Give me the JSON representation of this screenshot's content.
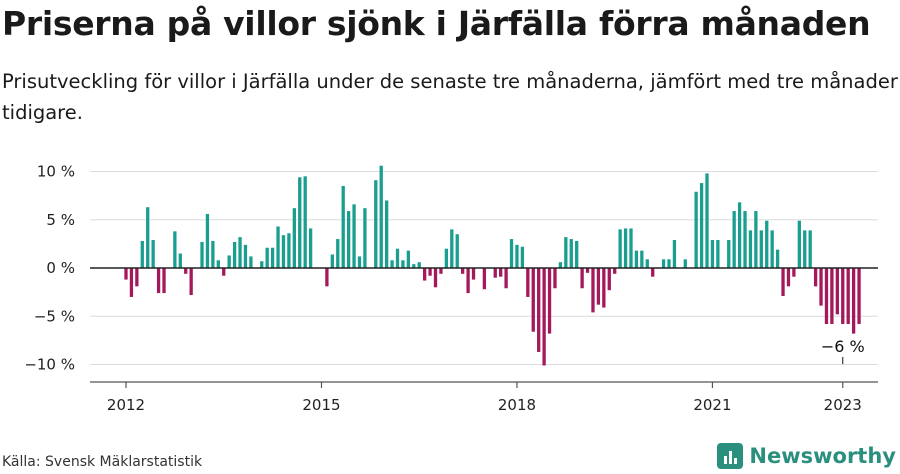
{
  "title": "Priserna på villor sjönk i Järfälla förra månaden",
  "subtitle": "Prisutveckling för villor i Järfälla under de senaste tre månaderna, jämfört med tre månader tidigare.",
  "source": "Källa: Svensk Mäklarstatistik",
  "brand": "Newsworthy",
  "colors": {
    "positive": "#1a9e8f",
    "negative": "#a3195b",
    "brand": "#2b8f7e"
  },
  "chart_data": {
    "type": "bar",
    "title": "Priserna på villor sjönk i Järfälla förra månaden",
    "x_start": "2012-01",
    "x_ticks": [
      {
        "label": "2012",
        "date": "2012-01"
      },
      {
        "label": "2015",
        "date": "2015-01"
      },
      {
        "label": "2018",
        "date": "2018-01"
      },
      {
        "label": "2021",
        "date": "2021-01"
      },
      {
        "label": "2023",
        "date": "2023-01"
      }
    ],
    "y_ticks": [
      {
        "label": "10 %",
        "value": 10
      },
      {
        "label": "5 %",
        "value": 5
      },
      {
        "label": "0 %",
        "value": 0
      },
      {
        "label": "−5 %",
        "value": -5
      },
      {
        "label": "−10 %",
        "value": -10
      }
    ],
    "ylim": [
      -11,
      11
    ],
    "annotation": {
      "label": "−6 %",
      "date": "2023-01",
      "value": -6
    },
    "values": [
      -1.2,
      -3.0,
      -1.9,
      2.8,
      6.3,
      2.9,
      -2.6,
      -2.6,
      null,
      3.8,
      1.5,
      -0.6,
      -2.8,
      null,
      2.7,
      5.6,
      2.8,
      0.8,
      -0.8,
      1.3,
      2.7,
      3.2,
      2.4,
      1.2,
      null,
      0.7,
      2.1,
      2.1,
      4.3,
      3.4,
      3.6,
      6.2,
      9.4,
      9.5,
      4.1,
      null,
      null,
      -1.9,
      1.4,
      3.0,
      8.5,
      5.9,
      6.6,
      1.2,
      6.2,
      null,
      9.1,
      10.6,
      7.0,
      0.8,
      2.0,
      0.8,
      1.8,
      0.4,
      0.6,
      -1.3,
      -0.8,
      -2.0,
      -0.6,
      2.0,
      4.0,
      3.5,
      -0.6,
      -2.6,
      -1.2,
      null,
      -2.2,
      null,
      -1.0,
      -0.9,
      -2.1,
      3.0,
      2.4,
      2.2,
      -3.0,
      -6.6,
      -8.7,
      -10.1,
      -6.8,
      -2.1,
      0.6,
      3.2,
      3.0,
      2.8,
      -2.1,
      -0.5,
      -4.6,
      -3.8,
      -4.1,
      -2.3,
      -0.6,
      4.0,
      4.1,
      4.1,
      1.8,
      1.8,
      0.9,
      -0.9,
      null,
      0.9,
      0.9,
      2.9,
      null,
      0.9,
      null,
      7.9,
      8.8,
      9.8,
      2.9,
      2.9,
      null,
      2.9,
      5.9,
      6.8,
      5.9,
      3.9,
      5.9,
      3.9,
      4.9,
      3.9,
      1.9,
      -2.9,
      -1.9,
      -0.9,
      4.9,
      3.9,
      3.9,
      -1.9,
      -3.9,
      -5.8,
      -5.8,
      -4.8,
      -5.8,
      -5.8,
      -6.8,
      -5.8
    ]
  }
}
